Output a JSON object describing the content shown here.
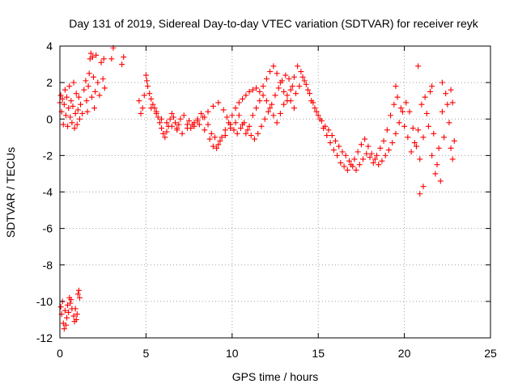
{
  "chart_data": {
    "type": "scatter",
    "title": "Day 131 of 2019, Sidereal Day-to-day VTEC variation (SDTVAR) for receiver reyk",
    "xlabel": "GPS time / hours",
    "ylabel": "SDTVAR / TECUs",
    "xlim": [
      0,
      25
    ],
    "ylim": [
      -12,
      4
    ],
    "xticks": [
      0,
      5,
      10,
      15,
      20,
      25
    ],
    "yticks": [
      -12,
      -10,
      -8,
      -6,
      -4,
      -2,
      0,
      2,
      4
    ],
    "grid": true,
    "marker": "plus",
    "color": "#ff0000",
    "series": [
      {
        "name": "SDTVAR",
        "points": [
          [
            0.0,
            0.9
          ],
          [
            0.05,
            1.3
          ],
          [
            0.1,
            0.4
          ],
          [
            0.15,
            1.1
          ],
          [
            0.2,
            -0.3
          ],
          [
            0.25,
            0.8
          ],
          [
            0.3,
            1.6
          ],
          [
            0.35,
            0.2
          ],
          [
            0.4,
            1.2
          ],
          [
            0.45,
            -0.4
          ],
          [
            0.5,
            0.6
          ],
          [
            0.55,
            1.8
          ],
          [
            0.6,
            0.1
          ],
          [
            0.65,
            1.0
          ],
          [
            0.7,
            -0.2
          ],
          [
            0.75,
            0.7
          ],
          [
            0.8,
            2.0
          ],
          [
            0.85,
            -0.5
          ],
          [
            0.9,
            0.3
          ],
          [
            0.95,
            1.4
          ],
          [
            1.0,
            -0.3
          ],
          [
            1.05,
            0.5
          ],
          [
            1.1,
            1.2
          ],
          [
            1.15,
            0.0
          ],
          [
            1.2,
            0.8
          ],
          [
            1.3,
            0.3
          ],
          [
            1.4,
            1.6
          ],
          [
            1.5,
            2.1
          ],
          [
            1.55,
            1.0
          ],
          [
            1.6,
            0.4
          ],
          [
            1.65,
            1.8
          ],
          [
            1.7,
            2.5
          ],
          [
            1.75,
            3.3
          ],
          [
            1.8,
            3.6
          ],
          [
            1.85,
            1.2
          ],
          [
            1.9,
            3.4
          ],
          [
            1.95,
            2.3
          ],
          [
            2.0,
            0.6
          ],
          [
            2.05,
            1.5
          ],
          [
            2.1,
            3.5
          ],
          [
            2.2,
            2.0
          ],
          [
            2.3,
            1.3
          ],
          [
            2.4,
            3.1
          ],
          [
            2.5,
            2.2
          ],
          [
            2.55,
            3.3
          ],
          [
            2.6,
            1.7
          ],
          [
            3.0,
            3.3
          ],
          [
            3.1,
            3.9
          ],
          [
            3.6,
            3.0
          ],
          [
            3.7,
            3.4
          ],
          [
            0.05,
            -10.3
          ],
          [
            0.1,
            -10.7
          ],
          [
            0.15,
            -10.0
          ],
          [
            0.2,
            -11.2
          ],
          [
            0.25,
            -11.5
          ],
          [
            0.3,
            -10.5
          ],
          [
            0.35,
            -11.3
          ],
          [
            0.4,
            -10.9
          ],
          [
            0.45,
            -10.2
          ],
          [
            0.5,
            -10.6
          ],
          [
            0.55,
            -9.8
          ],
          [
            0.6,
            -10.1
          ],
          [
            0.65,
            -9.9
          ],
          [
            0.7,
            -10.4
          ],
          [
            0.8,
            -10.8
          ],
          [
            0.85,
            -11.1
          ],
          [
            0.9,
            -10.4
          ],
          [
            0.95,
            -11.0
          ],
          [
            1.0,
            -10.7
          ],
          [
            1.05,
            -9.6
          ],
          [
            1.1,
            -9.4
          ],
          [
            1.15,
            -9.8
          ],
          [
            4.6,
            1.0
          ],
          [
            4.7,
            0.3
          ],
          [
            4.8,
            0.6
          ],
          [
            4.9,
            1.3
          ],
          [
            5.0,
            2.4
          ],
          [
            5.05,
            2.1
          ],
          [
            5.1,
            1.8
          ],
          [
            5.2,
            1.4
          ],
          [
            5.3,
            1.1
          ],
          [
            5.4,
            0.8
          ],
          [
            5.5,
            0.6
          ],
          [
            5.6,
            0.4
          ],
          [
            5.7,
            0.1
          ],
          [
            5.8,
            -0.2
          ],
          [
            5.9,
            -0.5
          ],
          [
            6.0,
            -0.8
          ],
          [
            6.1,
            -1.0
          ],
          [
            6.2,
            -0.7
          ],
          [
            6.3,
            -0.4
          ],
          [
            6.4,
            0.0
          ],
          [
            6.5,
            0.3
          ],
          [
            6.6,
            0.1
          ],
          [
            6.7,
            -0.2
          ],
          [
            6.8,
            -0.5
          ],
          [
            6.9,
            -0.3
          ],
          [
            7.0,
            0.0
          ],
          [
            7.2,
            0.2
          ],
          [
            7.4,
            -0.3
          ],
          [
            7.6,
            -0.5
          ],
          [
            7.8,
            -0.2
          ],
          [
            8.0,
            0.0
          ],
          [
            8.2,
            0.3
          ],
          [
            8.4,
            0.1
          ],
          [
            8.6,
            -0.3
          ],
          [
            8.8,
            -0.8
          ],
          [
            9.0,
            -1.0
          ],
          [
            9.2,
            -1.4
          ],
          [
            9.4,
            -1.0
          ],
          [
            9.6,
            -0.6
          ],
          [
            9.8,
            -0.2
          ],
          [
            10.0,
            0.2
          ],
          [
            10.2,
            0.6
          ],
          [
            10.4,
            0.9
          ],
          [
            10.6,
            1.1
          ],
          [
            10.8,
            1.3
          ],
          [
            11.0,
            1.5
          ],
          [
            11.2,
            1.6
          ],
          [
            11.4,
            1.7
          ],
          [
            11.6,
            1.5
          ],
          [
            11.8,
            1.8
          ],
          [
            12.0,
            2.2
          ],
          [
            12.2,
            2.6
          ],
          [
            12.4,
            2.9
          ],
          [
            12.6,
            2.5
          ],
          [
            12.8,
            2.0
          ],
          [
            13.0,
            1.5
          ],
          [
            13.2,
            1.0
          ],
          [
            13.4,
            1.6
          ],
          [
            13.6,
            2.3
          ],
          [
            13.8,
            2.9
          ],
          [
            14.0,
            2.6
          ],
          [
            14.2,
            2.1
          ],
          [
            14.4,
            1.6
          ],
          [
            14.6,
            1.0
          ],
          [
            14.8,
            0.6
          ],
          [
            15.0,
            0.2
          ],
          [
            15.2,
            -0.1
          ],
          [
            15.4,
            -0.4
          ],
          [
            15.6,
            -0.6
          ],
          [
            15.8,
            -0.9
          ],
          [
            16.0,
            -1.2
          ],
          [
            16.2,
            -1.5
          ],
          [
            16.4,
            -1.8
          ],
          [
            16.6,
            -2.0
          ],
          [
            16.8,
            -2.3
          ],
          [
            17.0,
            -2.6
          ],
          [
            17.2,
            -2.8
          ],
          [
            17.4,
            -2.5
          ],
          [
            17.6,
            -2.2
          ],
          [
            17.8,
            -1.9
          ],
          [
            18.0,
            -2.1
          ],
          [
            18.2,
            -2.4
          ],
          [
            18.4,
            -2.0
          ],
          [
            18.6,
            -1.6
          ],
          [
            18.8,
            -1.2
          ],
          [
            19.0,
            -0.6
          ],
          [
            19.2,
            0.2
          ],
          [
            19.4,
            0.8
          ],
          [
            19.6,
            1.2
          ],
          [
            19.8,
            0.6
          ],
          [
            20.0,
            -0.4
          ],
          [
            20.2,
            -1.0
          ],
          [
            20.4,
            -1.8
          ],
          [
            20.6,
            -1.3
          ],
          [
            20.8,
            -0.6
          ],
          [
            21.0,
            0.8
          ],
          [
            21.2,
            1.2
          ],
          [
            21.4,
            -0.4
          ],
          [
            21.6,
            -2.0
          ],
          [
            21.8,
            -3.0
          ],
          [
            22.0,
            -1.6
          ],
          [
            22.2,
            0.4
          ],
          [
            22.4,
            1.4
          ],
          [
            22.6,
            -0.2
          ],
          [
            22.7,
            -1.6
          ],
          [
            22.8,
            -2.2
          ],
          [
            22.9,
            -1.2
          ],
          [
            5.3,
            0.6
          ],
          [
            5.6,
            0.3
          ],
          [
            5.9,
            0.0
          ],
          [
            6.2,
            -0.2
          ],
          [
            6.5,
            -0.4
          ],
          [
            6.8,
            -0.6
          ],
          [
            7.1,
            -0.8
          ],
          [
            7.4,
            -0.5
          ],
          [
            7.7,
            -0.3
          ],
          [
            8.0,
            -0.1
          ],
          [
            8.3,
            0.1
          ],
          [
            8.6,
            0.4
          ],
          [
            8.9,
            0.7
          ],
          [
            9.2,
            0.9
          ],
          [
            9.5,
            0.5
          ],
          [
            9.7,
            0.1
          ],
          [
            9.9,
            -0.3
          ],
          [
            10.1,
            -0.6
          ],
          [
            10.3,
            -0.8
          ],
          [
            10.5,
            -0.5
          ],
          [
            10.7,
            -0.2
          ],
          [
            10.9,
            -0.6
          ],
          [
            11.1,
            -0.9
          ],
          [
            11.3,
            -1.1
          ],
          [
            11.5,
            -0.8
          ],
          [
            11.7,
            -0.4
          ],
          [
            11.9,
            0.0
          ],
          [
            12.1,
            0.4
          ],
          [
            12.3,
            0.8
          ],
          [
            12.5,
            1.3
          ],
          [
            12.7,
            1.7
          ],
          [
            12.9,
            2.1
          ],
          [
            13.1,
            2.4
          ],
          [
            13.3,
            2.2
          ],
          [
            13.5,
            1.8
          ],
          [
            13.7,
            1.4
          ],
          [
            13.9,
            1.8
          ],
          [
            14.1,
            2.3
          ],
          [
            14.3,
            1.9
          ],
          [
            14.5,
            1.4
          ],
          [
            14.7,
            0.9
          ],
          [
            14.9,
            0.4
          ],
          [
            15.1,
            0.0
          ],
          [
            15.3,
            -0.5
          ],
          [
            15.5,
            -0.9
          ],
          [
            15.7,
            -1.3
          ],
          [
            15.9,
            -1.7
          ],
          [
            16.1,
            -2.0
          ],
          [
            16.3,
            -2.4
          ],
          [
            16.5,
            -2.6
          ],
          [
            16.7,
            -2.8
          ],
          [
            16.9,
            -2.5
          ],
          [
            17.1,
            -2.2
          ],
          [
            17.3,
            -1.8
          ],
          [
            17.5,
            -1.4
          ],
          [
            17.7,
            -1.1
          ],
          [
            17.9,
            -1.5
          ],
          [
            18.1,
            -1.9
          ],
          [
            18.3,
            -2.2
          ],
          [
            18.5,
            -2.5
          ],
          [
            18.7,
            -2.3
          ],
          [
            18.9,
            -2.0
          ],
          [
            19.1,
            -1.7
          ],
          [
            19.3,
            -1.3
          ],
          [
            19.5,
            -0.8
          ],
          [
            19.7,
            -0.2
          ],
          [
            19.9,
            0.4
          ],
          [
            20.1,
            0.9
          ],
          [
            20.3,
            0.4
          ],
          [
            20.5,
            -0.5
          ],
          [
            20.7,
            -1.5
          ],
          [
            20.9,
            -2.2
          ],
          [
            21.1,
            -1.0
          ],
          [
            21.3,
            0.3
          ],
          [
            21.5,
            1.5
          ],
          [
            21.7,
            -0.8
          ],
          [
            21.9,
            -2.5
          ],
          [
            22.1,
            -3.4
          ],
          [
            22.3,
            -1.0
          ],
          [
            22.5,
            0.8
          ],
          [
            10.6,
            -0.3
          ],
          [
            10.8,
            -0.8
          ],
          [
            11.0,
            -0.4
          ],
          [
            11.2,
            0.2
          ],
          [
            11.4,
            0.6
          ],
          [
            11.6,
            1.0
          ],
          [
            11.8,
            1.3
          ],
          [
            12.0,
            1.0
          ],
          [
            12.2,
            0.6
          ],
          [
            12.4,
            0.2
          ],
          [
            12.6,
            -0.2
          ],
          [
            12.8,
            0.3
          ],
          [
            13.0,
            0.8
          ],
          [
            13.2,
            1.3
          ],
          [
            13.4,
            1.0
          ],
          [
            13.6,
            0.6
          ],
          [
            7.5,
            -0.1
          ],
          [
            7.8,
            -0.4
          ],
          [
            8.1,
            -0.3
          ],
          [
            8.4,
            -0.6
          ],
          [
            8.7,
            -1.1
          ],
          [
            8.9,
            -1.5
          ],
          [
            9.1,
            -1.6
          ],
          [
            9.3,
            -1.2
          ],
          [
            9.6,
            -0.9
          ],
          [
            9.9,
            -0.5
          ],
          [
            10.2,
            -0.2
          ],
          [
            10.4,
            0.2
          ],
          [
            20.8,
            2.9
          ],
          [
            21.6,
            1.8
          ],
          [
            21.1,
            -3.7
          ],
          [
            20.9,
            -4.1
          ],
          [
            22.2,
            2.0
          ],
          [
            19.5,
            1.8
          ],
          [
            22.7,
            1.6
          ],
          [
            22.8,
            0.9
          ]
        ]
      }
    ]
  }
}
